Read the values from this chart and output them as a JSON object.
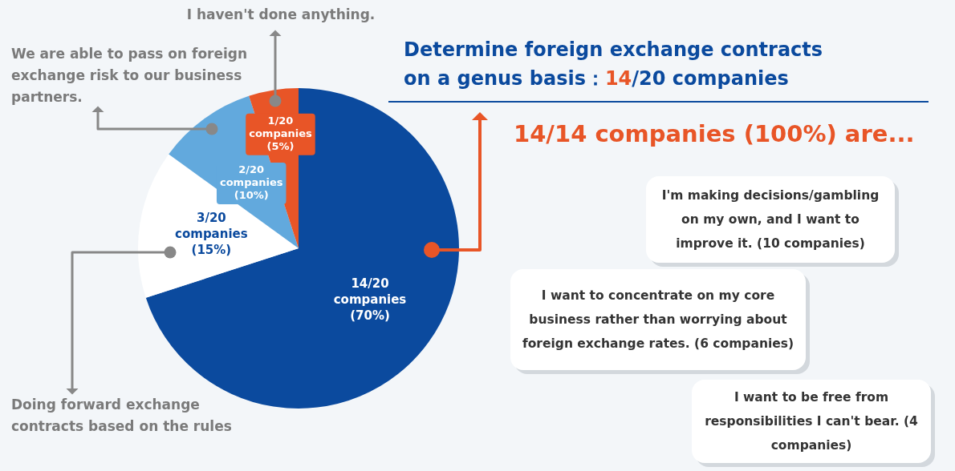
{
  "chart_data": {
    "type": "pie",
    "title": "Determine foreign exchange contracts on a genus basis：14/20 companies",
    "categories": [
      null,
      "Doing forward exchange contracts based on the rules",
      "We are able to pass on foreign exchange risk to our business partners.",
      "I haven't done anything."
    ],
    "values": [
      70,
      15,
      10,
      5
    ],
    "colors": [
      "#0b4a9e",
      "#ffffff",
      "#62a9dd",
      "#e85527"
    ],
    "value_labels": [
      "14/20 companies (70%)",
      "3/20 companies (15%)",
      "2/20 companies (10%)",
      "1/20 companies (5%)"
    ],
    "annotations": [
      "14/14 companies (100%) are...",
      "I'm making decisions/gambling on my own, and I want to improve it. (10 companies)",
      "I want to concentrate on my core business rather than worrying about foreign exchange rates. (6 companies)",
      "I want to be free from responsibilities I can't bear. (4 companies)"
    ],
    "legend": false
  }
}
